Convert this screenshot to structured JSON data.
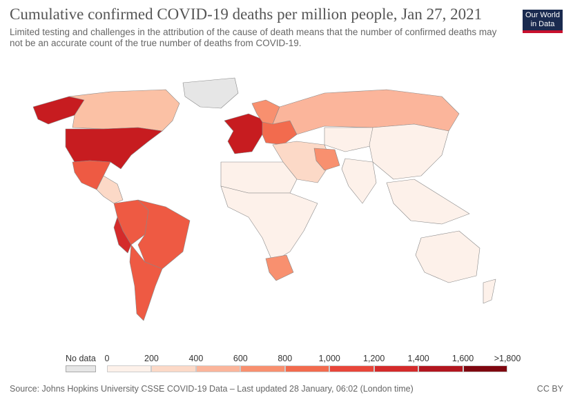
{
  "header": {
    "title": "Cumulative confirmed COVID-19 deaths per million people, Jan 27, 2021",
    "subtitle": "Limited testing and challenges in the attribution of the cause of death means that the number of confirmed deaths may not be an accurate count of the true number of deaths from COVID-19.",
    "logo_line1": "Our World",
    "logo_line2": "in Data"
  },
  "legend": {
    "no_data_label": "No data",
    "ticks": [
      "0",
      "200",
      "400",
      "600",
      "800",
      "1,000",
      "1,200",
      "1,400",
      "1,600",
      ">1,800"
    ],
    "bin_colors": [
      "#fdf1ea",
      "#fcd9c7",
      "#fbb59b",
      "#f8906f",
      "#f26b4e",
      "#e8463a",
      "#d42b2b",
      "#b2161f",
      "#7f0710"
    ],
    "no_data_color": "#e6e6e6"
  },
  "regions": [
    {
      "name": "Alaska",
      "color": "#c71c20"
    },
    {
      "name": "Canada",
      "color": "#fbc1a5"
    },
    {
      "name": "Greenland",
      "color": "#e6e6e6"
    },
    {
      "name": "United States",
      "color": "#c71c20"
    },
    {
      "name": "Mexico",
      "color": "#ee5a43"
    },
    {
      "name": "Central America",
      "color": "#fcd9c7"
    },
    {
      "name": "Colombia/Ecuador/Bolivia",
      "color": "#ee5a43"
    },
    {
      "name": "Peru",
      "color": "#d42b2b"
    },
    {
      "name": "Brazil",
      "color": "#ee5a43"
    },
    {
      "name": "Argentina/Chile",
      "color": "#ee5a43"
    },
    {
      "name": "Western Europe",
      "color": "#c71c20"
    },
    {
      "name": "Eastern Europe",
      "color": "#f26b4e"
    },
    {
      "name": "Scandinavia",
      "color": "#f8906f"
    },
    {
      "name": "Russia",
      "color": "#fbb59b"
    },
    {
      "name": "Middle East",
      "color": "#fcd9c7"
    },
    {
      "name": "Iran",
      "color": "#f8906f"
    },
    {
      "name": "North Africa",
      "color": "#fdf1ea"
    },
    {
      "name": "Sub-Saharan Africa",
      "color": "#fdf1ea"
    },
    {
      "name": "South Africa",
      "color": "#f8906f"
    },
    {
      "name": "Central Asia",
      "color": "#fdf1ea"
    },
    {
      "name": "China/East Asia",
      "color": "#fdf1ea"
    },
    {
      "name": "India/South Asia",
      "color": "#fdf1ea"
    },
    {
      "name": "Southeast Asia",
      "color": "#fdf1ea"
    },
    {
      "name": "Australia",
      "color": "#fdf1ea"
    },
    {
      "name": "New Zealand",
      "color": "#fdf1ea"
    }
  ],
  "footer": {
    "source": "Source: Johns Hopkins University CSSE COVID-19 Data – Last updated 28 January, 06:02 (London time)",
    "license": "CC BY"
  }
}
